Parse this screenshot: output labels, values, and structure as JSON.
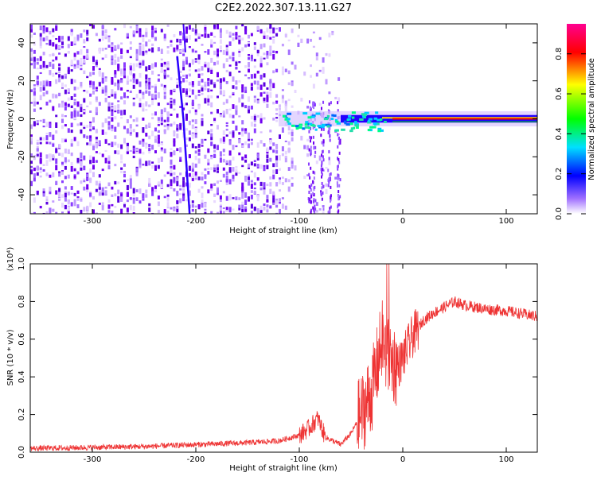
{
  "title": "C2E2.2022.307.13.11.G27",
  "chart_data": [
    {
      "type": "heatmap",
      "xlabel": "Height of straight line (km)",
      "ylabel": "Frequency (Hz)",
      "xlim": [
        -360,
        130
      ],
      "ylim": [
        -50,
        50
      ],
      "x_ticks": [
        "-300",
        "-200",
        "-100",
        "0",
        "100"
      ],
      "x_tick_values": [
        -300,
        -200,
        -100,
        0,
        100
      ],
      "y_ticks": [
        "-40",
        "-20",
        "0",
        "20",
        "40"
      ],
      "y_tick_values": [
        -40,
        -20,
        0,
        20,
        40
      ],
      "colorbar": {
        "label": "Normalized spectral amplitude",
        "range": [
          0.0,
          0.95
        ],
        "ticks": [
          "0.0",
          "0.2",
          "0.4",
          "0.6",
          "0.8"
        ],
        "tick_values": [
          0.0,
          0.2,
          0.4,
          0.6,
          0.8
        ],
        "colors": [
          "#ffffff",
          "#8800ff",
          "#0000ff",
          "#00ffff",
          "#00ff00",
          "#ffff00",
          "#ff0000",
          "#ff00aa"
        ]
      },
      "features": {
        "noise_region_km": [
          -360,
          -60
        ],
        "diagonal_streak": [
          [
            -218,
            33
          ],
          [
            -212,
            0
          ],
          [
            -206,
            -50
          ]
        ],
        "center_line_frequency_hz": 0,
        "center_line_start_km": -120
      }
    },
    {
      "type": "line",
      "xlabel": "Height of straight line (km)",
      "ylabel": "SNR (10 * v/v)",
      "scale_label": "(x10⁴)",
      "xlim": [
        -360,
        130
      ],
      "ylim": [
        0,
        1.0
      ],
      "x_ticks": [
        "-300",
        "-200",
        "-100",
        "0",
        "100"
      ],
      "x_tick_values": [
        -300,
        -200,
        -100,
        0,
        100
      ],
      "y_ticks": [
        "0.0",
        "0.2",
        "0.4",
        "0.6",
        "0.8",
        "1.0"
      ],
      "y_tick_values": [
        0.0,
        0.2,
        0.4,
        0.6,
        0.8,
        1.0
      ],
      "series": [
        {
          "color": "#ee3333",
          "x": [
            -360,
            -300,
            -250,
            -200,
            -150,
            -120,
            -100,
            -90,
            -82,
            -75,
            -60,
            -50,
            -40,
            -30,
            -25,
            -20,
            -15,
            -10,
            -5,
            0,
            10,
            20,
            30,
            40,
            50,
            60,
            80,
            100,
            120,
            130
          ],
          "y": [
            0.02,
            0.025,
            0.03,
            0.04,
            0.05,
            0.06,
            0.09,
            0.13,
            0.18,
            0.08,
            0.04,
            0.1,
            0.2,
            0.32,
            0.45,
            0.6,
            0.5,
            0.48,
            0.45,
            0.5,
            0.62,
            0.7,
            0.74,
            0.77,
            0.8,
            0.78,
            0.76,
            0.75,
            0.73,
            0.72
          ]
        }
      ]
    }
  ]
}
